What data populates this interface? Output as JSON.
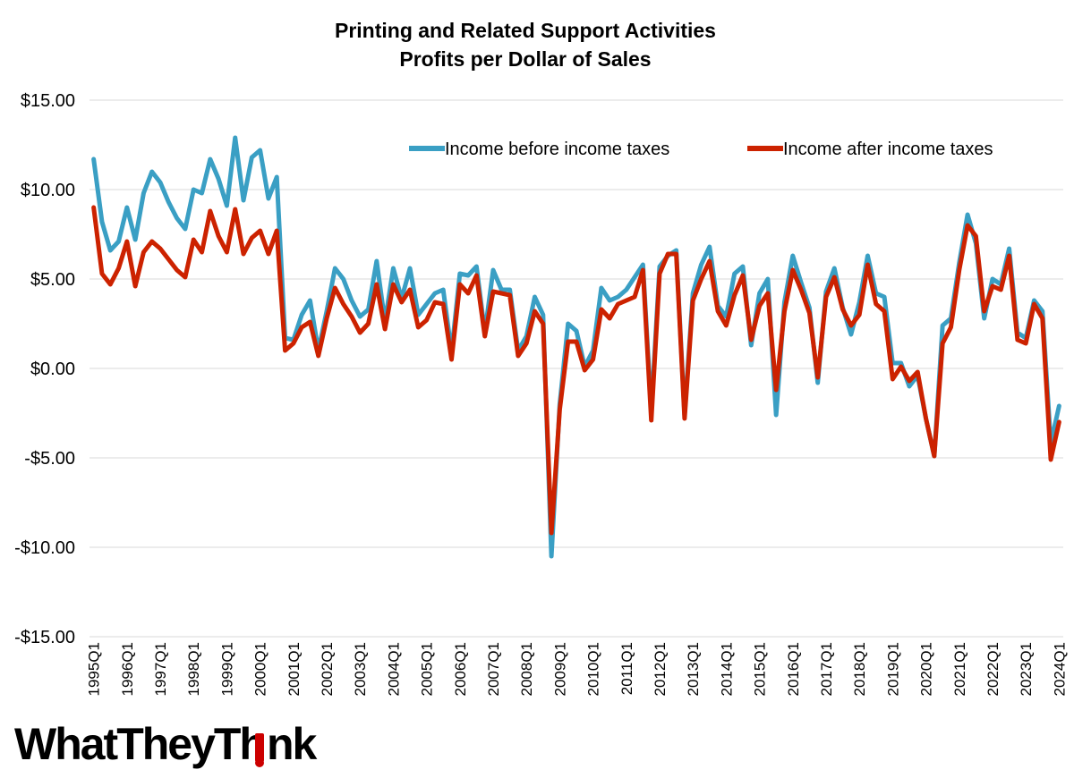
{
  "chart_data": {
    "type": "line",
    "title": "Printing and Related Support Activities",
    "subtitle": "Profits per Dollar of Sales",
    "xlabel": "",
    "ylabel": "",
    "ylim": [
      -15,
      15
    ],
    "y_ticks": [
      15,
      10,
      5,
      0,
      -5,
      -10,
      -15
    ],
    "y_tick_labels": [
      "$15.00",
      "$10.00",
      "$5.00",
      "$0.00",
      "-$5.00",
      "-$10.00",
      "-$15.00"
    ],
    "grid": true,
    "legend_position": "top-right",
    "x_tick_labels": [
      "1995Q1",
      "1996Q1",
      "1997Q1",
      "1998Q1",
      "1999Q1",
      "2000Q1",
      "2001Q1",
      "2002Q1",
      "2003Q1",
      "2004Q1",
      "2005Q1",
      "2006Q1",
      "2007Q1",
      "2008Q1",
      "2009Q1",
      "2010Q1",
      "2011Q1",
      "2012Q1",
      "2013Q1",
      "2014Q1",
      "2015Q1",
      "2016Q1",
      "2017Q1",
      "2018Q1",
      "2019Q1",
      "2020Q1",
      "2021Q1",
      "2022Q1",
      "2023Q1",
      "2024Q1"
    ],
    "series": [
      {
        "name": "Income before income taxes",
        "color": "#3a9fc4",
        "values": [
          11.7,
          8.2,
          6.6,
          7.1,
          9.0,
          7.2,
          9.8,
          11.0,
          10.4,
          9.3,
          8.4,
          7.8,
          10.0,
          9.8,
          11.7,
          10.6,
          9.1,
          12.9,
          9.4,
          11.8,
          12.2,
          9.5,
          10.7,
          1.7,
          1.6,
          3.0,
          3.8,
          1.0,
          3.2,
          5.6,
          5.0,
          3.8,
          2.9,
          3.3,
          6.0,
          2.6,
          5.6,
          3.9,
          5.6,
          3.0,
          3.6,
          4.2,
          4.4,
          0.9,
          5.3,
          5.2,
          5.7,
          2.0,
          5.5,
          4.4,
          4.4,
          1.0,
          1.8,
          4.0,
          3.0,
          -10.5,
          -2.0,
          2.5,
          2.1,
          0.1,
          1.0,
          4.5,
          3.8,
          4.0,
          4.4,
          5.1,
          5.8,
          -2.4,
          5.7,
          6.3,
          6.6,
          -2.6,
          4.2,
          5.8,
          6.8,
          3.5,
          2.9,
          5.3,
          5.7,
          1.3,
          4.2,
          5.0,
          -2.6,
          3.7,
          6.3,
          4.8,
          3.4,
          -0.8,
          4.3,
          5.6,
          3.4,
          1.9,
          3.7,
          6.3,
          4.2,
          4.0,
          0.3,
          0.3,
          -1.0,
          -0.4,
          -2.8,
          -4.9,
          2.4,
          2.8,
          5.9,
          8.6,
          7.0,
          2.8,
          5.0,
          4.7,
          6.7,
          2.0,
          1.7,
          3.8,
          3.2,
          -4.2,
          -2.1
        ]
      },
      {
        "name": "Income after income taxes",
        "color": "#cc2200",
        "values": [
          9.0,
          5.3,
          4.7,
          5.6,
          7.1,
          4.6,
          6.5,
          7.1,
          6.7,
          6.1,
          5.5,
          5.1,
          7.2,
          6.5,
          8.8,
          7.4,
          6.5,
          8.9,
          6.4,
          7.3,
          7.7,
          6.4,
          7.7,
          1.0,
          1.4,
          2.3,
          2.6,
          0.7,
          2.8,
          4.5,
          3.6,
          2.9,
          2.0,
          2.5,
          4.7,
          2.2,
          4.7,
          3.7,
          4.4,
          2.3,
          2.7,
          3.7,
          3.6,
          0.5,
          4.7,
          4.2,
          5.2,
          1.8,
          4.3,
          4.2,
          4.1,
          0.7,
          1.4,
          3.2,
          2.5,
          -9.2,
          -2.3,
          1.5,
          1.5,
          -0.1,
          0.5,
          3.3,
          2.8,
          3.6,
          3.8,
          4.0,
          5.5,
          -2.9,
          5.3,
          6.4,
          6.4,
          -2.8,
          3.8,
          5.0,
          6.0,
          3.2,
          2.4,
          4.1,
          5.2,
          1.6,
          3.5,
          4.2,
          -1.2,
          3.2,
          5.5,
          4.4,
          3.1,
          -0.5,
          4.0,
          5.1,
          3.3,
          2.4,
          3.0,
          5.8,
          3.6,
          3.2,
          -0.6,
          0.1,
          -0.7,
          -0.2,
          -2.8,
          -4.9,
          1.4,
          2.3,
          5.5,
          8.0,
          7.4,
          3.2,
          4.6,
          4.4,
          6.3,
          1.6,
          1.4,
          3.6,
          2.8,
          -5.1,
          -3.0
        ]
      }
    ]
  },
  "brand": {
    "logo_text_left": "WhatTheyTh",
    "logo_text_right": "nk",
    "logo_text_accessible": "WhatTheyThink",
    "logo_accent_color": "#cc0000"
  }
}
